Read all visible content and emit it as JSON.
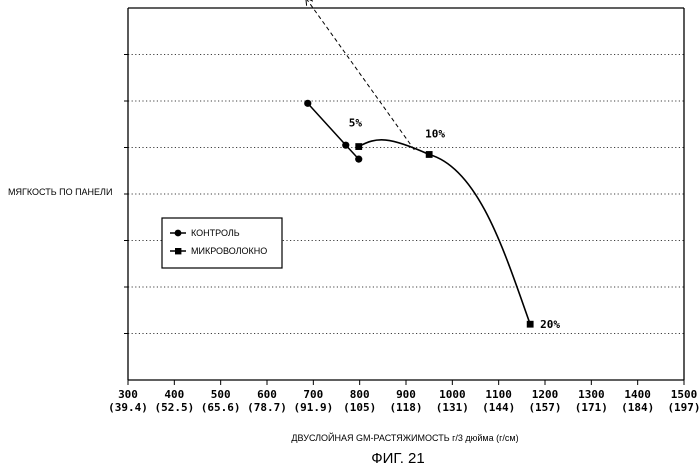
{
  "caption": "ФИГ. 21",
  "chart_data": {
    "type": "line",
    "ylabel": "МЯГКОСТЬ ПО ПАНЕЛИ",
    "xlabel": "ДВУСЛОЙНАЯ GM-РАСТЯЖИМОСТЬ г/3 дюйма (г/см)",
    "xlim": [
      300,
      1500
    ],
    "x_ticks": [
      {
        "value": 300,
        "label": "300",
        "sub": "(39.4)"
      },
      {
        "value": 400,
        "label": "400",
        "sub": "(52.5)"
      },
      {
        "value": 500,
        "label": "500",
        "sub": "(65.6)"
      },
      {
        "value": 600,
        "label": "600",
        "sub": "(78.7)"
      },
      {
        "value": 700,
        "label": "700",
        "sub": "(91.9)"
      },
      {
        "value": 800,
        "label": "800",
        "sub": "(105)"
      },
      {
        "value": 900,
        "label": "900",
        "sub": "(118)"
      },
      {
        "value": 1000,
        "label": "1000",
        "sub": "(131)"
      },
      {
        "value": 1100,
        "label": "1100",
        "sub": "(144)"
      },
      {
        "value": 1200,
        "label": "1200",
        "sub": "(157)"
      },
      {
        "value": 1300,
        "label": "1300",
        "sub": "(171)"
      },
      {
        "value": 1400,
        "label": "1400",
        "sub": "(184)"
      },
      {
        "value": 1500,
        "label": "1500",
        "sub": "(197)"
      }
    ],
    "ylim": [
      0,
      8
    ],
    "y_gridlines": [
      1,
      2,
      3,
      4,
      5,
      6,
      7
    ],
    "grid": "horizontal dotted",
    "legend": "left-center",
    "series": [
      {
        "name": "КОНТРОЛЬ",
        "marker": "circle",
        "points": [
          [
            688,
            5.95
          ],
          [
            770,
            5.05
          ],
          [
            798,
            4.75
          ]
        ]
      },
      {
        "name": "МИКРОВОЛОКНО",
        "marker": "square",
        "points": [
          [
            798,
            5.02
          ],
          [
            950,
            4.85
          ],
          [
            1168,
            1.2
          ]
        ],
        "point_labels": [
          "5%",
          "10%",
          "20%"
        ]
      }
    ],
    "trend_arrow": {
      "from": [
        918,
        4.95
      ],
      "to": [
        685,
        8.2
      ]
    }
  }
}
